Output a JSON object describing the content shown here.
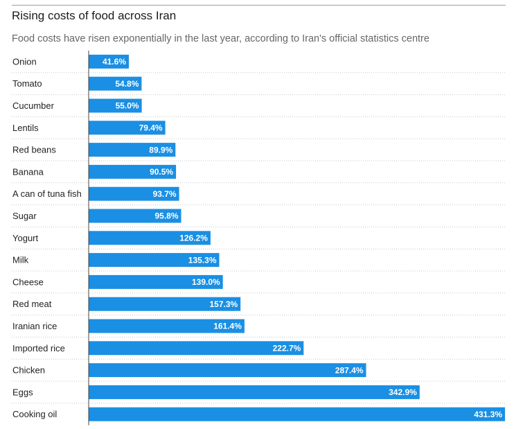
{
  "header": {
    "title": "Rising costs of food across Iran",
    "subtitle": "Food costs have risen exponentially in the last year, according to Iran's official statistics centre"
  },
  "colors": {
    "bar": "#1a8fe3",
    "axis": "#444444",
    "gridline": "#c8c8c8"
  },
  "chart_data": {
    "type": "bar",
    "orientation": "horizontal",
    "title": "Rising costs of food across Iran",
    "subtitle": "Food costs have risen exponentially in the last year, according to Iran's official statistics centre",
    "categories": [
      "Onion",
      "Tomato",
      "Cucumber",
      "Lentils",
      "Red beans",
      "Banana",
      "A can of tuna fish",
      "Sugar",
      "Yogurt",
      "Milk",
      "Cheese",
      "Red meat",
      "Iranian rice",
      "Imported rice",
      "Chicken",
      "Eggs",
      "Cooking oil"
    ],
    "values": [
      41.6,
      54.8,
      55.0,
      79.4,
      89.9,
      90.5,
      93.7,
      95.8,
      126.2,
      135.3,
      139.0,
      157.3,
      161.4,
      222.7,
      287.4,
      342.9,
      431.3
    ],
    "value_labels": [
      "41.6%",
      "54.8%",
      "55.0%",
      "79.4%",
      "89.9%",
      "90.5%",
      "93.7%",
      "95.8%",
      "126.2%",
      "135.3%",
      "139.0%",
      "157.3%",
      "161.4%",
      "222.7%",
      "287.4%",
      "342.9%",
      "431.3%"
    ],
    "unit": "%",
    "xlim": [
      0,
      431.3
    ],
    "grid": false
  }
}
